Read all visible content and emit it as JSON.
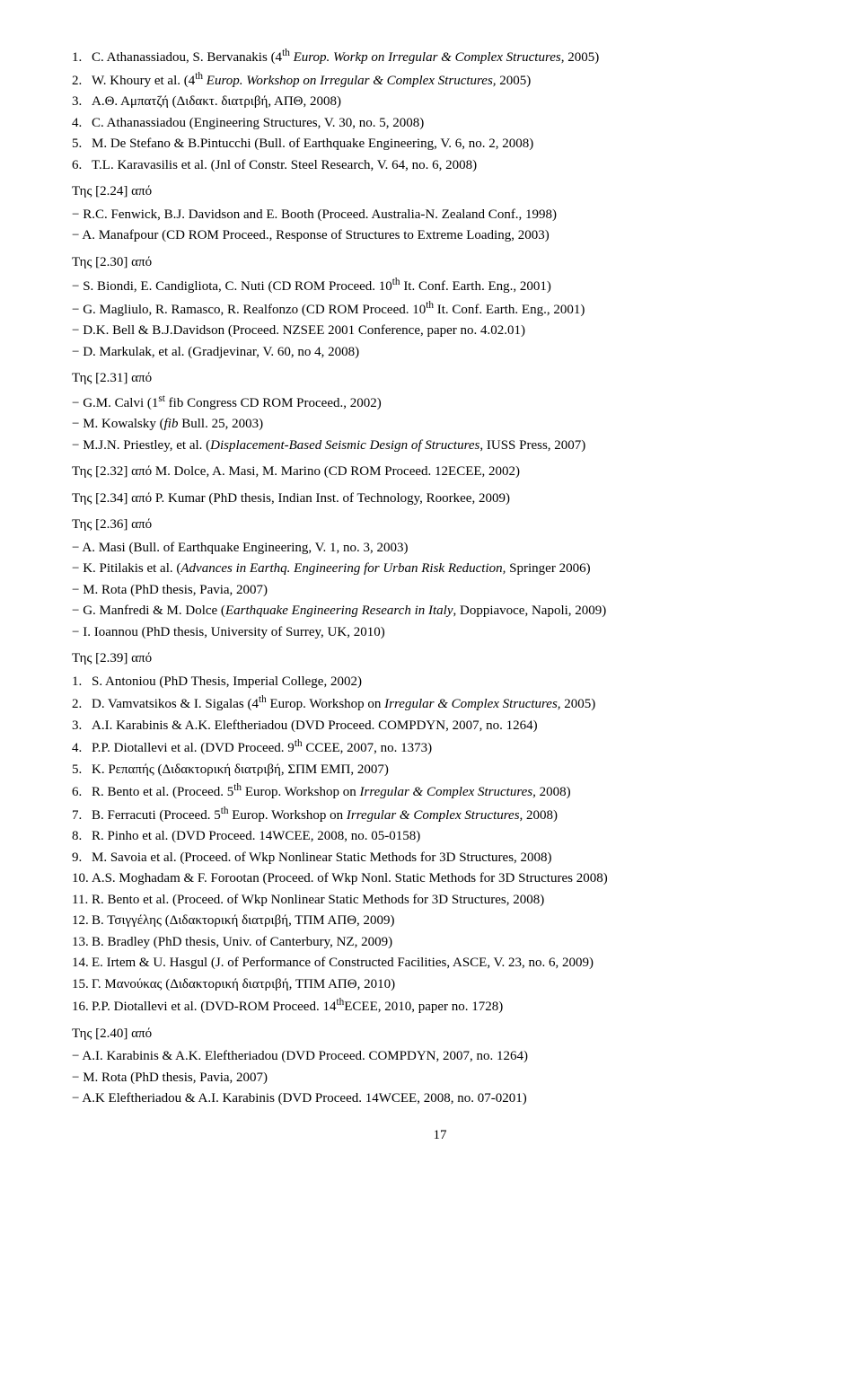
{
  "items1": [
    {
      "n": "1.",
      "t": "C. Athanassiadou, S. Bervanakis (4"
    },
    {
      "sup": "th",
      "rest": " Europ. Workp on Irregular & Complex Structures, 2005)",
      "ital_from": 6
    },
    {
      "n": "2.",
      "t": "W. Khoury et al. (4"
    },
    {
      "sup": "th",
      "rest": " Europ. Workshop on Irregular & Complex Structures, 2005)",
      "ital_from": 6
    },
    {
      "n": "3.",
      "t": "Α.Θ. Αμπατζή (Διδακτ. διατριβή, ΑΠΘ, 2008)"
    },
    {
      "n": "4.",
      "t": "C. Athanassiadou (Engineering Structures, V. 30, no. 5, 2008)"
    },
    {
      "n": "5.",
      "t": "M. De Stefano & B.Pintucchi (Bull. of Earthquake Engineering, V. 6, no. 2, 2008)"
    },
    {
      "n": "6.",
      "t": "T.L. Karavasilis et al. (Jnl of Constr. Steel Research, V. 64, no. 6, 2008)"
    }
  ],
  "s224": "Της [2.24] από",
  "items224": [
    "R.C. Fenwick, B.J. Davidson and E. Booth (Proceed. Australia-N. Zealand Conf., 1998)",
    "A. Manafpour (CD ROM Proceed., Response of Structures to Extreme Loading, 2003)"
  ],
  "s230": "Της [2.30] από",
  "items230": [
    {
      "pre": "S. Biondi, E. Candigliota, C. Nuti (CD ROM Proceed. 10",
      "sup": "th",
      "post": " It. Conf. Earth. Eng., 2001)"
    },
    {
      "pre": "G. Magliulo, R. Ramasco, R. Realfonzo  (CD ROM Proceed. 10",
      "sup": "th",
      "post": " It. Conf. Earth. Eng., 2001)"
    },
    {
      "plain": "D.K. Bell & B.J.Davidson (Proceed. NZSEE 2001 Conference, paper no. 4.02.01)"
    },
    {
      "plain": "D. Markulak, et al. (Gradjevinar, V. 60, no 4, 2008)"
    }
  ],
  "s231": "Της [2.31] από",
  "items231": [
    {
      "pre": "G.M. Calvi (1",
      "sup": "st",
      "post": " fib Congress CD ROM Proceed., 2002)"
    },
    {
      "html": "M. Kowalsky (<span class='ital'>fib</span> Bull. 25, 2003)"
    },
    {
      "html": "M.J.N. Priestley, et al. (<span class='ital'>Displacement-Based Seismic Design of Structures</span>, IUSS Press, 2007)"
    }
  ],
  "line232": "Της [2.32] από M. Dolce, A. Masi, M. Marino (CD ROM Proceed. 12ECEE, 2002)",
  "line234": "Της [2.34] από P. Kumar (PhD thesis, Indian Inst. of Technology, Roorkee, 2009)",
  "s236": "Της [2.36] από",
  "items236": [
    {
      "plain": "A. Masi (Bull. of Earthquake Engineering, V. 1, no. 3, 2003)"
    },
    {
      "html": "K. Pitilakis et al. (<span class='ital'>Advances in Earthq. Engineering for Urban Risk Reduction,</span> Springer 2006)"
    },
    {
      "plain": "M. Rota (PhD thesis, Pavia, 2007)"
    },
    {
      "html": "G. Manfredi & M. Dolce (<span class='ital'>Earthquake Engineering Research in Italy</span>, Doppiavoce, Napoli, 2009)"
    },
    {
      "plain": "I. Ioannou (PhD thesis, University of Surrey, UK, 2010)"
    }
  ],
  "s239": "Της [2.39] από",
  "items239": [
    {
      "n": "1.",
      "plain": "S. Antoniou (PhD Thesis, Imperial College, 2002)"
    },
    {
      "n": "2.",
      "pre": "D. Vamvatsikos & I. Sigalas (4",
      "sup": "th",
      "postA": " Europ. Workshop on ",
      "ital": "Irregular & Complex Structures,",
      "postB": " 2005)"
    },
    {
      "n": "3.",
      "plain": "A.I. Karabinis & A.K. Eleftheriadou (DVD Proceed. COMPDYN, 2007, no. 1264)"
    },
    {
      "n": "4.",
      "pre": "P.P. Diotallevi et al. (DVD Proceed. 9",
      "sup": "th",
      "postA": " CCEE, 2007, no. 1373)",
      "ital": "",
      "postB": ""
    },
    {
      "n": "5.",
      "plain": "Κ. Ρεπαπής (Διδακτορική διατριβή, ΣΠΜ ΕΜΠ, 2007)"
    },
    {
      "n": "6.",
      "pre": "R. Bento et al. (Proceed. 5",
      "sup": "th",
      "postA": " Europ. Workshop on ",
      "ital": "Irregular & Complex Structures,",
      "postB": " 2008)"
    },
    {
      "n": "7.",
      "pre": "B. Ferracuti (Proceed. 5",
      "sup": "th",
      "postA": " Europ. Workshop on ",
      "ital": "Irregular & Complex Structures,",
      "postB": " 2008)"
    },
    {
      "n": "8.",
      "plain": "R. Pinho et al. (DVD Proceed. 14WCEE, 2008, no. 05-0158)"
    },
    {
      "n": "9.",
      "plain": "M. Savoia et al. (Proceed. of Wkp Nonlinear Static Methods for 3D Structures, 2008)"
    },
    {
      "n": "10.",
      "plain": "A.S. Moghadam & F. Forootan (Proceed. of Wkp Nonl. Static Methods for 3D Structures 2008)"
    },
    {
      "n": "11.",
      "plain": "R. Bento et al. (Proceed. of Wkp Nonlinear Static Methods for 3D Structures, 2008)"
    },
    {
      "n": "12.",
      "plain": "Β. Τσιγγέλης (Διδακτορική διατριβή, ΤΠΜ ΑΠΘ, 2009)"
    },
    {
      "n": "13.",
      "plain": "B. Bradley (PhD thesis, Univ. of Canterbury, NZ, 2009)"
    },
    {
      "n": "14.",
      "plain": "E. Irtem & U. Hasgul (J. of Performance of Constructed Facilities, ASCE, V. 23, no. 6, 2009)"
    },
    {
      "n": "15.",
      "plain": "Γ. Μανούκας (Διδακτορική διατριβή, ΤΠΜ ΑΠΘ, 2010)"
    },
    {
      "n": "16.",
      "pre": "P.P. Diotallevi et al. (DVD-ROM Proceed. 14",
      "sup": "th",
      "postA": "ECEE, 2010, paper no. 1728)",
      "ital": "",
      "postB": ""
    }
  ],
  "s240": "Της [2.40] από",
  "items240": [
    "A.I. Karabinis & A.K. Eleftheriadou (DVD Proceed. COMPDYN, 2007, no. 1264)",
    "M. Rota (PhD thesis, Pavia, 2007)",
    "A.K Eleftheriadou & A.I. Karabinis (DVD Proceed. 14WCEE, 2008, no. 07-0201)"
  ],
  "pageNumber": "17"
}
